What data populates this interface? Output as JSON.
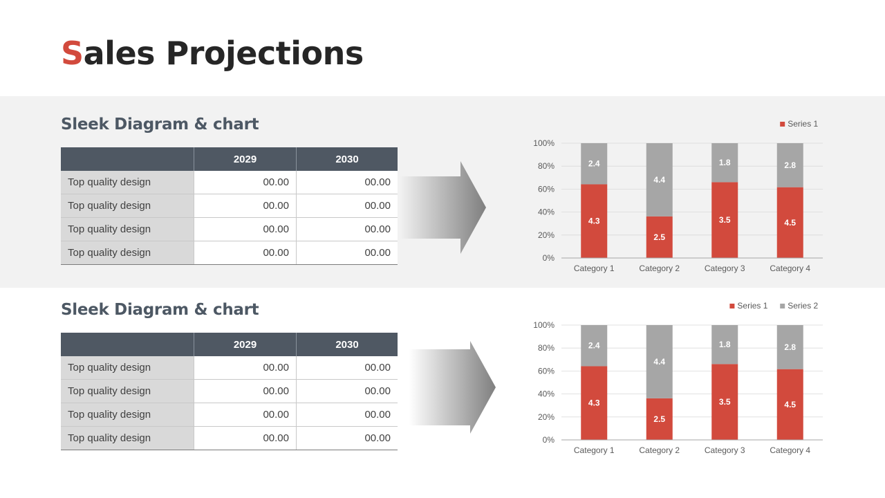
{
  "page": {
    "title_first": "S",
    "title_rest": "ales Projections"
  },
  "colors": {
    "accent": "#d24a3d",
    "header_bg": "#4f5863",
    "series1": "#d24a3d",
    "series2": "#a6a6a6",
    "band": "#f2f2f2"
  },
  "sections": [
    {
      "title": "Sleek Diagram & chart",
      "table": {
        "headers": [
          "",
          "2029",
          "2030"
        ],
        "rows": [
          [
            "Top quality design",
            "00.00",
            "00.00"
          ],
          [
            "Top quality design",
            "00.00",
            "00.00"
          ],
          [
            "Top quality design",
            "00.00",
            "00.00"
          ],
          [
            "Top quality design",
            "00.00",
            "00.00"
          ]
        ]
      },
      "arrow_icon": "arrow-right-icon"
    },
    {
      "title": "Sleek Diagram & chart",
      "table": {
        "headers": [
          "",
          "2029",
          "2030"
        ],
        "rows": [
          [
            "Top quality design",
            "00.00",
            "00.00"
          ],
          [
            "Top quality design",
            "00.00",
            "00.00"
          ],
          [
            "Top quality design",
            "00.00",
            "00.00"
          ],
          [
            "Top quality design",
            "00.00",
            "00.00"
          ]
        ]
      },
      "arrow_icon": "arrow-right-icon"
    }
  ],
  "chart_data": [
    {
      "type": "bar",
      "stacked": "percent",
      "categories": [
        "Category 1",
        "Category 2",
        "Category 3",
        "Category 4"
      ],
      "series": [
        {
          "name": "Series 1",
          "values": [
            4.3,
            2.5,
            3.5,
            4.5
          ],
          "color": "#d24a3d"
        },
        {
          "values": [
            2.4,
            4.4,
            1.8,
            2.8
          ],
          "color": "#a6a6a6"
        }
      ],
      "legend": [
        "Series 1"
      ],
      "legend_position": "top-right",
      "yticks": [
        "0%",
        "20%",
        "40%",
        "60%",
        "80%",
        "100%"
      ],
      "ylim": [
        0,
        100
      ],
      "grid": true
    },
    {
      "type": "bar",
      "stacked": "percent",
      "categories": [
        "Category 1",
        "Category 2",
        "Category 3",
        "Category 4"
      ],
      "series": [
        {
          "name": "Series 1",
          "values": [
            4.3,
            2.5,
            3.5,
            4.5
          ],
          "color": "#d24a3d"
        },
        {
          "name": "Series 2",
          "values": [
            2.4,
            4.4,
            1.8,
            2.8
          ],
          "color": "#a6a6a6"
        }
      ],
      "legend": [
        "Series 1",
        "Series 2"
      ],
      "legend_position": "top-right",
      "yticks": [
        "0%",
        "20%",
        "40%",
        "60%",
        "80%",
        "100%"
      ],
      "ylim": [
        0,
        100
      ],
      "grid": true
    }
  ]
}
